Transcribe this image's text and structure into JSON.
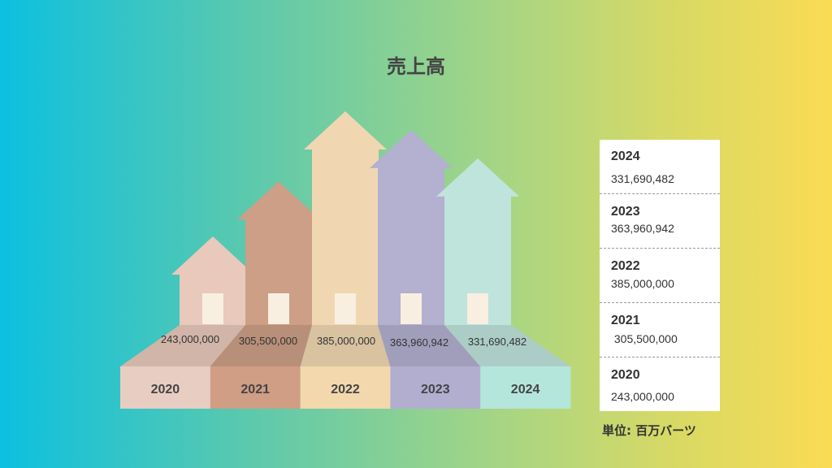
{
  "chart_data": {
    "type": "bar",
    "title": "売上高",
    "categories": [
      "2020",
      "2021",
      "2022",
      "2023",
      "2024"
    ],
    "values": [
      243000000,
      305500000,
      385000000,
      363960942,
      331690482
    ],
    "value_labels": [
      "243,000,000",
      "305,500,000",
      "385,000,000",
      "363,960,942",
      "331,690,482"
    ],
    "colors": [
      "#e8c9bb",
      "#cc9f86",
      "#f0d7b2",
      "#b3b0d0",
      "#bfe4dc"
    ],
    "base_colors": [
      "#e8cdc2",
      "#cf9e84",
      "#f3d8ae",
      "#b2aed0",
      "#b4e6dc"
    ],
    "ylim": [
      0,
      385000000
    ]
  },
  "legend": {
    "items": [
      {
        "year": "2024",
        "value": "331,690,482"
      },
      {
        "year": "2023",
        "value": "363,960,942"
      },
      {
        "year": "2022",
        "value": "385,000,000"
      },
      {
        "year": "2021",
        "value": " 305,500,000"
      },
      {
        "year": "2020",
        "value": "243,000,000"
      }
    ]
  },
  "unit_label": "単位: 百万バーツ"
}
